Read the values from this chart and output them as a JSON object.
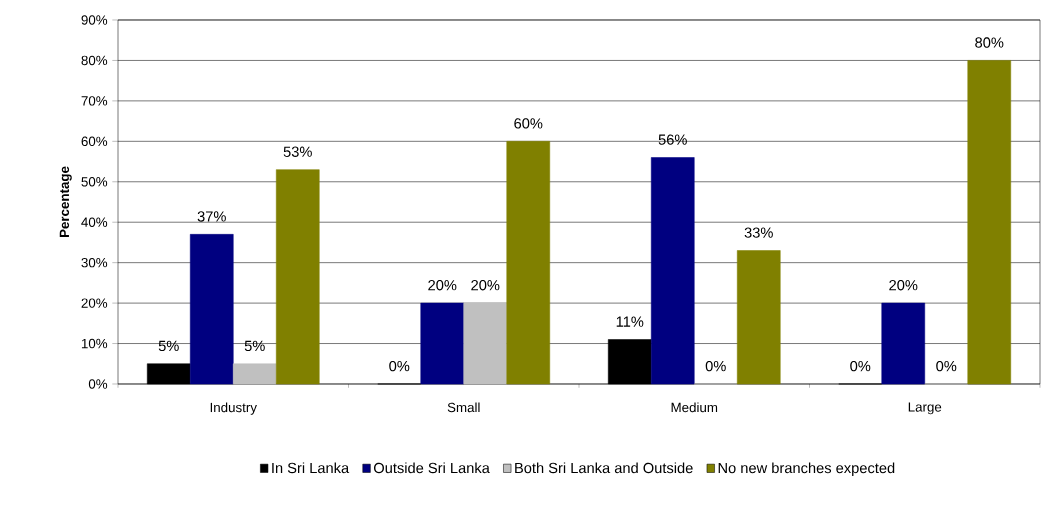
{
  "chart_data": {
    "type": "bar",
    "ylabel": "Percentage",
    "categories": [
      "Industry",
      "Small",
      "Medium",
      "Large"
    ],
    "series": [
      {
        "name": "In Sri Lanka",
        "color": "#000000",
        "values": [
          5,
          0,
          11,
          0
        ],
        "value_labels": [
          "5%",
          "0%",
          "11%",
          "0%"
        ]
      },
      {
        "name": "Outside Sri Lanka",
        "color": "#000080",
        "values": [
          37,
          20,
          56,
          20
        ],
        "value_labels": [
          "37%",
          "20%",
          "56%",
          "20%"
        ]
      },
      {
        "name": "Both Sri Lanka and Outside",
        "color": "#c0c0c0",
        "values": [
          5,
          20,
          0,
          0
        ],
        "value_labels": [
          "5%",
          "20%",
          "0%",
          "0%"
        ]
      },
      {
        "name": "No new branches expected",
        "color": "#808000",
        "values": [
          53,
          60,
          33,
          80
        ],
        "value_labels": [
          "53%",
          "60%",
          "33%",
          "80%"
        ]
      }
    ],
    "ylim": [
      0,
      90
    ],
    "yticks": [
      {
        "value": 0,
        "label": "0%"
      },
      {
        "value": 10,
        "label": "10%"
      },
      {
        "value": 20,
        "label": "20%"
      },
      {
        "value": 30,
        "label": "30%"
      },
      {
        "value": 40,
        "label": "40%"
      },
      {
        "value": 50,
        "label": "50%"
      },
      {
        "value": 60,
        "label": "60%"
      },
      {
        "value": 70,
        "label": "70%"
      },
      {
        "value": 80,
        "label": "80%"
      },
      {
        "value": 90,
        "label": "90%"
      }
    ],
    "grid": "y",
    "legend": "bottom"
  }
}
